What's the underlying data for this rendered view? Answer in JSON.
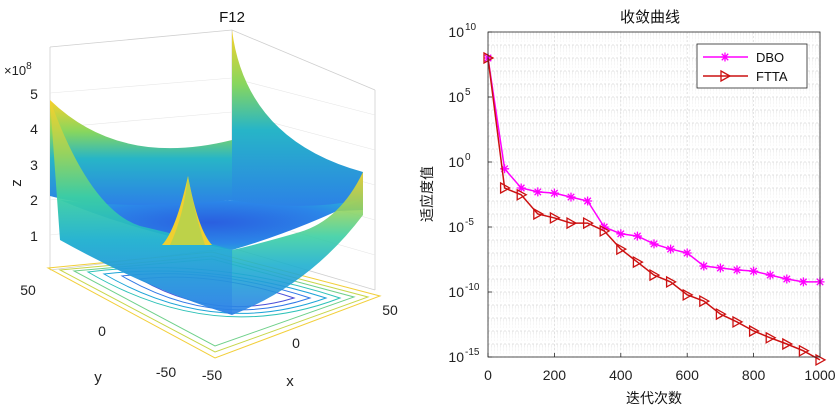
{
  "chart_data": [
    {
      "type": "surface3d",
      "title": "F12",
      "xlabel": "x",
      "ylabel": "y",
      "zlabel": "z",
      "z_exponent_label": "×10",
      "z_exponent_power": "8",
      "x_ticks": [
        "50",
        "0",
        "-50"
      ],
      "y_ticks": [
        "50",
        "0",
        "-50"
      ],
      "z_ticks": [
        "1",
        "2",
        "3",
        "4",
        "5"
      ],
      "x_range": [
        -50,
        50
      ],
      "y_range": [
        -50,
        50
      ],
      "z_range": [
        0,
        500000000
      ],
      "colormap": [
        "#3e26a8",
        "#2c7fe8",
        "#1eb0cf",
        "#3ccfa2",
        "#9bd45a",
        "#f9d12a"
      ],
      "contour_projection": true
    },
    {
      "type": "line",
      "title": "收敛曲线",
      "xlabel": "迭代次数",
      "ylabel": "适应度值",
      "x_ticks": [
        "0",
        "200",
        "400",
        "600",
        "800",
        "1000"
      ],
      "y_tick_base": "10",
      "y_tick_exponents": [
        "10",
        "5",
        "0",
        "-5",
        "-10",
        "-15"
      ],
      "xlim": [
        0,
        1000
      ],
      "ylim": [
        1e-15,
        10000000000.0
      ],
      "yscale": "log",
      "grid": true,
      "legend_position": "top-right",
      "series": [
        {
          "name": "DBO",
          "color": "#ff00ff",
          "marker": "asterisk",
          "x": [
            0,
            50,
            100,
            150,
            200,
            250,
            300,
            350,
            400,
            450,
            500,
            550,
            600,
            650,
            700,
            750,
            800,
            850,
            900,
            950,
            1000
          ],
          "y": [
            100000000.0,
            0.3,
            0.01,
            0.005,
            0.004,
            0.002,
            0.001,
            1e-05,
            3e-06,
            2e-06,
            5e-07,
            2e-07,
            1e-07,
            1e-08,
            7e-09,
            5e-09,
            4e-09,
            2e-09,
            1e-09,
            6e-10,
            6e-10
          ]
        },
        {
          "name": "FTTA",
          "color": "#cc1111",
          "marker": "triangle-right",
          "x": [
            0,
            50,
            100,
            150,
            200,
            250,
            300,
            350,
            400,
            450,
            500,
            550,
            600,
            650,
            700,
            750,
            800,
            850,
            900,
            950,
            1000
          ],
          "y": [
            100000000.0,
            0.01,
            0.003,
            0.0001,
            5e-05,
            2e-05,
            2e-05,
            5e-06,
            2e-07,
            2e-08,
            2e-09,
            6e-10,
            6e-11,
            2e-11,
            2e-12,
            5e-13,
            1e-13,
            3e-14,
            1e-14,
            3e-15,
            6e-16
          ]
        }
      ]
    }
  ]
}
